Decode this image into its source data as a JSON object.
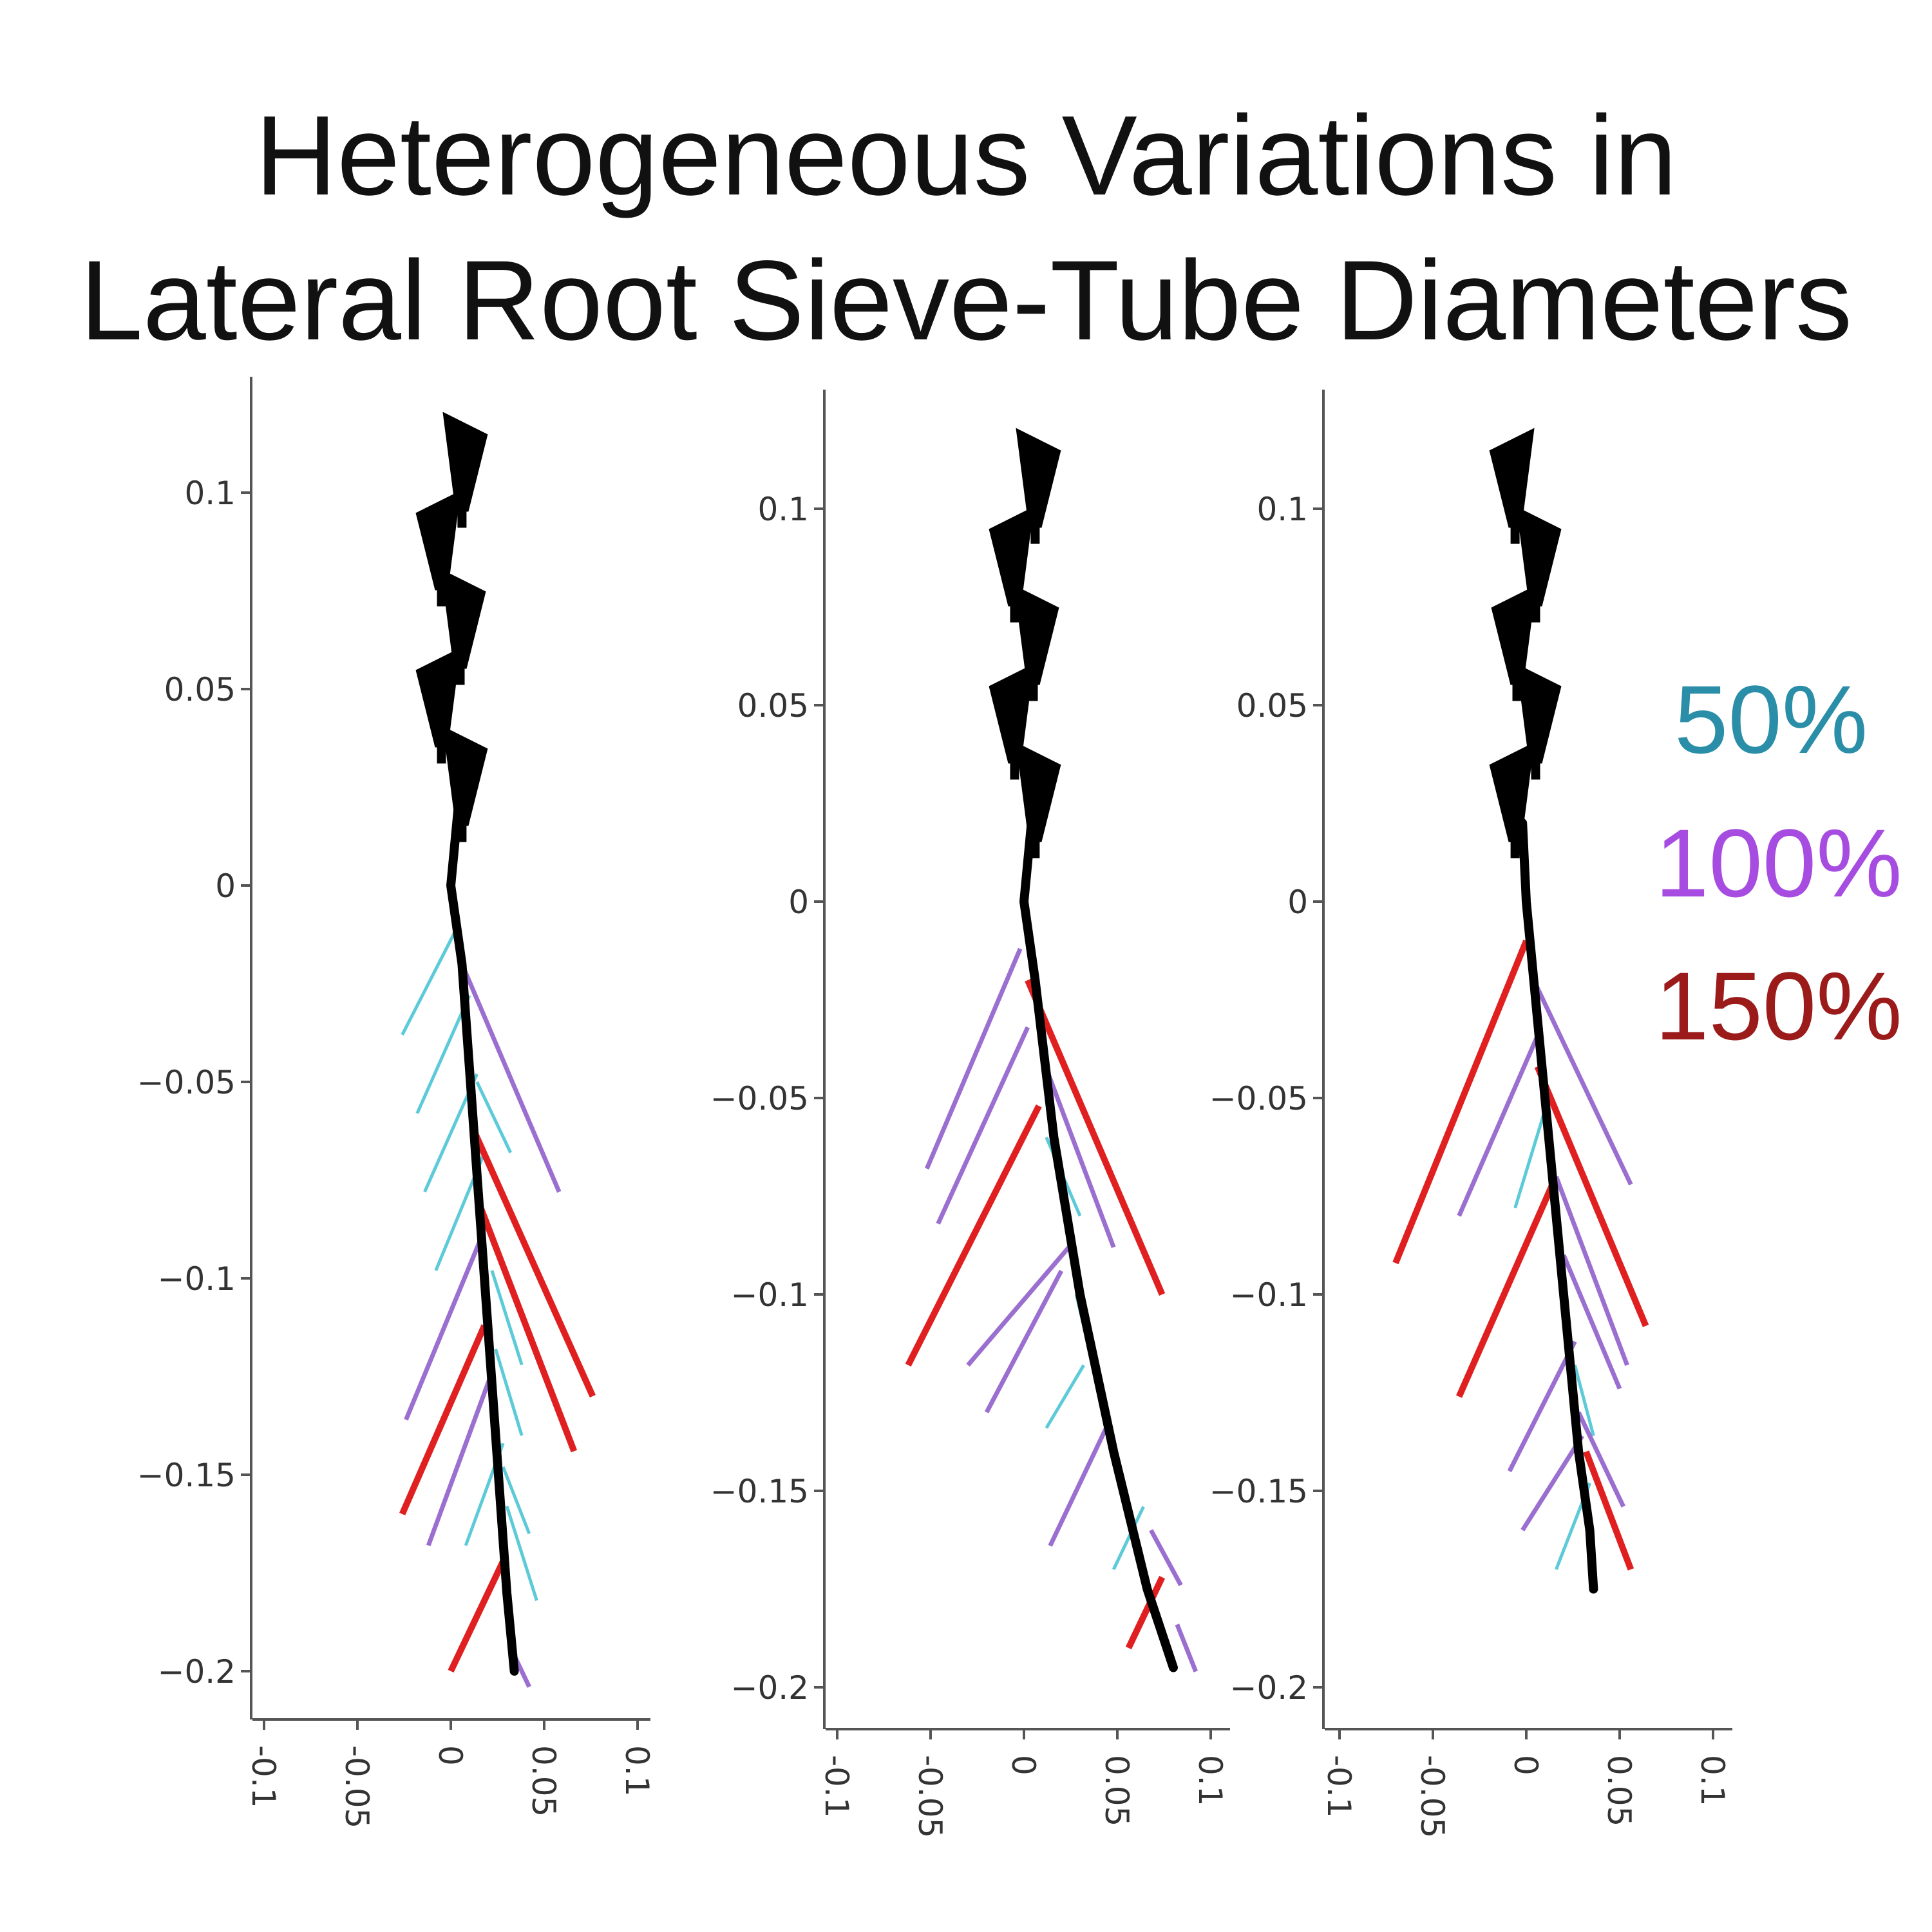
{
  "title_lines": [
    "Heterogeneous Variations in",
    "Lateral Root Sieve-Tube Diameters"
  ],
  "legend": [
    {
      "label": "50%",
      "color": "#2a8ea8"
    },
    {
      "label": "100%",
      "color": "#a64ce0"
    },
    {
      "label": "150%",
      "color": "#9b1b1b"
    }
  ],
  "colors": {
    "taproot": "#000000",
    "lat_50": "#5ccad8",
    "lat_100": "#9b6fd0",
    "lat_150": "#e02020",
    "axis": "#555555"
  },
  "chart_data": [
    {
      "type": "line",
      "title": "",
      "xlabel": "",
      "ylabel": "",
      "xlim": [
        -0.105,
        0.105
      ],
      "ylim": [
        -0.205,
        0.13
      ],
      "xticks": [
        -0.1,
        -0.05,
        0,
        0.05,
        0.1
      ],
      "xtick_labels": [
        "-0.1",
        "-0.05",
        "0",
        "0.05",
        "0.1"
      ],
      "yticks": [
        0.1,
        0.05,
        0,
        -0.05,
        -0.1,
        -0.15,
        -0.2
      ],
      "ytick_labels": [
        "0.1",
        "0.05",
        "0",
        "−0.05",
        "−0.1",
        "−0.15",
        "−0.2"
      ],
      "taproot": {
        "x": [
          0.004,
          0.0,
          0.006,
          0.012,
          0.018,
          0.024,
          0.03,
          0.034
        ],
        "y": [
          0.02,
          0.0,
          -0.02,
          -0.06,
          -0.1,
          -0.14,
          -0.18,
          -0.2
        ]
      },
      "hypocotyl": [
        [
          0.006,
          0.105
        ],
        [
          -0.005,
          0.085
        ],
        [
          0.005,
          0.065
        ],
        [
          -0.005,
          0.045
        ],
        [
          0.006,
          0.025
        ]
      ],
      "laterals": [
        {
          "class": "50%",
          "from": [
            0.002,
            -0.012
          ],
          "to": [
            -0.026,
            -0.038
          ]
        },
        {
          "class": "50%",
          "from": [
            0.01,
            -0.028
          ],
          "to": [
            -0.018,
            -0.058
          ]
        },
        {
          "class": "50%",
          "from": [
            0.014,
            -0.048
          ],
          "to": [
            -0.014,
            -0.078
          ]
        },
        {
          "class": "50%",
          "from": [
            0.018,
            -0.068
          ],
          "to": [
            -0.008,
            -0.098
          ]
        },
        {
          "class": "50%",
          "from": [
            0.014,
            -0.05
          ],
          "to": [
            0.032,
            -0.068
          ]
        },
        {
          "class": "50%",
          "from": [
            0.022,
            -0.098
          ],
          "to": [
            0.038,
            -0.122
          ]
        },
        {
          "class": "50%",
          "from": [
            0.024,
            -0.118
          ],
          "to": [
            0.038,
            -0.14
          ]
        },
        {
          "class": "50%",
          "from": [
            0.028,
            -0.148
          ],
          "to": [
            0.042,
            -0.165
          ]
        },
        {
          "class": "50%",
          "from": [
            0.028,
            -0.142
          ],
          "to": [
            0.008,
            -0.168
          ]
        },
        {
          "class": "50%",
          "from": [
            0.03,
            -0.158
          ],
          "to": [
            0.046,
            -0.182
          ]
        },
        {
          "class": "100%",
          "from": [
            0.006,
            -0.02
          ],
          "to": [
            0.058,
            -0.078
          ]
        },
        {
          "class": "100%",
          "from": [
            0.016,
            -0.09
          ],
          "to": [
            -0.024,
            -0.136
          ]
        },
        {
          "class": "100%",
          "from": [
            0.022,
            -0.124
          ],
          "to": [
            -0.012,
            -0.168
          ]
        },
        {
          "class": "100%",
          "from": [
            0.034,
            -0.196
          ],
          "to": [
            0.042,
            -0.204
          ]
        },
        {
          "class": "150%",
          "from": [
            0.012,
            -0.062
          ],
          "to": [
            0.076,
            -0.13
          ]
        },
        {
          "class": "150%",
          "from": [
            0.016,
            -0.082
          ],
          "to": [
            0.066,
            -0.144
          ]
        },
        {
          "class": "150%",
          "from": [
            0.018,
            -0.112
          ],
          "to": [
            -0.026,
            -0.16
          ]
        },
        {
          "class": "150%",
          "from": [
            0.028,
            -0.172
          ],
          "to": [
            0.0,
            -0.2
          ]
        }
      ]
    },
    {
      "type": "line",
      "title": "",
      "xlabel": "",
      "ylabel": "",
      "xlim": [
        -0.105,
        0.105
      ],
      "ylim": [
        -0.205,
        0.13
      ],
      "xticks": [
        -0.1,
        -0.05,
        0,
        0.05,
        0.1
      ],
      "xtick_labels": [
        "-0.1",
        "-0.05",
        "0",
        "0.05",
        "0.1"
      ],
      "yticks": [
        0.1,
        0.05,
        0,
        -0.05,
        -0.1,
        -0.15,
        -0.2
      ],
      "ytick_labels": [
        "0.1",
        "0.05",
        "0",
        "−0.05",
        "−0.1",
        "−0.15",
        "−0.2"
      ],
      "taproot": {
        "x": [
          0.004,
          0.0,
          0.006,
          0.016,
          0.03,
          0.048,
          0.066,
          0.08
        ],
        "y": [
          0.02,
          0.0,
          -0.02,
          -0.06,
          -0.1,
          -0.14,
          -0.175,
          -0.195
        ]
      },
      "hypocotyl": [
        [
          0.006,
          0.105
        ],
        [
          -0.005,
          0.085
        ],
        [
          0.005,
          0.065
        ],
        [
          -0.005,
          0.045
        ],
        [
          0.006,
          0.025
        ]
      ],
      "laterals": [
        {
          "class": "50%",
          "from": [
            0.012,
            -0.06
          ],
          "to": [
            0.03,
            -0.08
          ]
        },
        {
          "class": "50%",
          "from": [
            0.028,
            -0.1
          ],
          "to": [
            0.038,
            -0.12
          ]
        },
        {
          "class": "50%",
          "from": [
            0.032,
            -0.118
          ],
          "to": [
            0.012,
            -0.134
          ]
        },
        {
          "class": "50%",
          "from": [
            0.064,
            -0.154
          ],
          "to": [
            0.048,
            -0.17
          ]
        },
        {
          "class": "100%",
          "from": [
            -0.002,
            -0.012
          ],
          "to": [
            -0.052,
            -0.068
          ]
        },
        {
          "class": "100%",
          "from": [
            0.002,
            -0.032
          ],
          "to": [
            -0.046,
            -0.082
          ]
        },
        {
          "class": "100%",
          "from": [
            0.01,
            -0.04
          ],
          "to": [
            0.048,
            -0.088
          ]
        },
        {
          "class": "100%",
          "from": [
            0.024,
            -0.088
          ],
          "to": [
            -0.03,
            -0.118
          ]
        },
        {
          "class": "100%",
          "from": [
            0.02,
            -0.094
          ],
          "to": [
            -0.02,
            -0.13
          ]
        },
        {
          "class": "100%",
          "from": [
            0.044,
            -0.134
          ],
          "to": [
            0.014,
            -0.164
          ]
        },
        {
          "class": "100%",
          "from": [
            0.068,
            -0.16
          ],
          "to": [
            0.084,
            -0.174
          ]
        },
        {
          "class": "100%",
          "from": [
            0.082,
            -0.184
          ],
          "to": [
            0.092,
            -0.196
          ]
        },
        {
          "class": "150%",
          "from": [
            0.002,
            -0.02
          ],
          "to": [
            0.074,
            -0.1
          ]
        },
        {
          "class": "150%",
          "from": [
            0.008,
            -0.052
          ],
          "to": [
            -0.062,
            -0.118
          ]
        },
        {
          "class": "150%",
          "from": [
            0.074,
            -0.172
          ],
          "to": [
            0.056,
            -0.19
          ]
        }
      ]
    },
    {
      "type": "line",
      "title": "",
      "xlabel": "",
      "ylabel": "",
      "xlim": [
        -0.105,
        0.105
      ],
      "ylim": [
        -0.205,
        0.13
      ],
      "xticks": [
        -0.1,
        -0.05,
        0,
        0.05,
        0.1
      ],
      "xtick_labels": [
        "-0.1",
        "-0.05",
        "0",
        "0.05",
        "0.1"
      ],
      "yticks": [
        0.1,
        0.05,
        0,
        -0.05,
        -0.1,
        -0.15,
        -0.2
      ],
      "ytick_labels": [
        "0.1",
        "0.05",
        "0",
        "−0.05",
        "−0.1",
        "−0.15",
        "−0.2"
      ],
      "taproot": {
        "x": [
          -0.002,
          0.0,
          0.004,
          0.012,
          0.02,
          0.028,
          0.034,
          0.036
        ],
        "y": [
          0.02,
          0.0,
          -0.02,
          -0.06,
          -0.1,
          -0.14,
          -0.16,
          -0.175
        ]
      },
      "hypocotyl": [
        [
          -0.006,
          0.105
        ],
        [
          0.005,
          0.085
        ],
        [
          -0.005,
          0.065
        ],
        [
          0.005,
          0.045
        ],
        [
          -0.006,
          0.025
        ]
      ],
      "laterals": [
        {
          "class": "50%",
          "from": [
            0.012,
            -0.05
          ],
          "to": [
            -0.006,
            -0.078
          ]
        },
        {
          "class": "50%",
          "from": [
            0.026,
            -0.118
          ],
          "to": [
            0.036,
            -0.136
          ]
        },
        {
          "class": "50%",
          "from": [
            0.034,
            -0.148
          ],
          "to": [
            0.016,
            -0.17
          ]
        },
        {
          "class": "100%",
          "from": [
            0.004,
            -0.02
          ],
          "to": [
            0.056,
            -0.072
          ]
        },
        {
          "class": "100%",
          "from": [
            0.008,
            -0.032
          ],
          "to": [
            -0.036,
            -0.08
          ]
        },
        {
          "class": "100%",
          "from": [
            0.016,
            -0.07
          ],
          "to": [
            0.054,
            -0.118
          ]
        },
        {
          "class": "100%",
          "from": [
            0.02,
            -0.09
          ],
          "to": [
            0.05,
            -0.124
          ]
        },
        {
          "class": "100%",
          "from": [
            0.026,
            -0.112
          ],
          "to": [
            -0.009,
            -0.145
          ]
        },
        {
          "class": "100%",
          "from": [
            0.028,
            -0.13
          ],
          "to": [
            0.052,
            -0.154
          ]
        },
        {
          "class": "100%",
          "from": [
            0.03,
            -0.136
          ],
          "to": [
            -0.002,
            -0.16
          ]
        },
        {
          "class": "150%",
          "from": [
            0.0,
            -0.01
          ],
          "to": [
            -0.07,
            -0.092
          ]
        },
        {
          "class": "150%",
          "from": [
            0.006,
            -0.042
          ],
          "to": [
            0.064,
            -0.108
          ]
        },
        {
          "class": "150%",
          "from": [
            0.014,
            -0.072
          ],
          "to": [
            -0.036,
            -0.126
          ]
        },
        {
          "class": "150%",
          "from": [
            0.032,
            -0.14
          ],
          "to": [
            0.056,
            -0.17
          ]
        }
      ]
    }
  ]
}
